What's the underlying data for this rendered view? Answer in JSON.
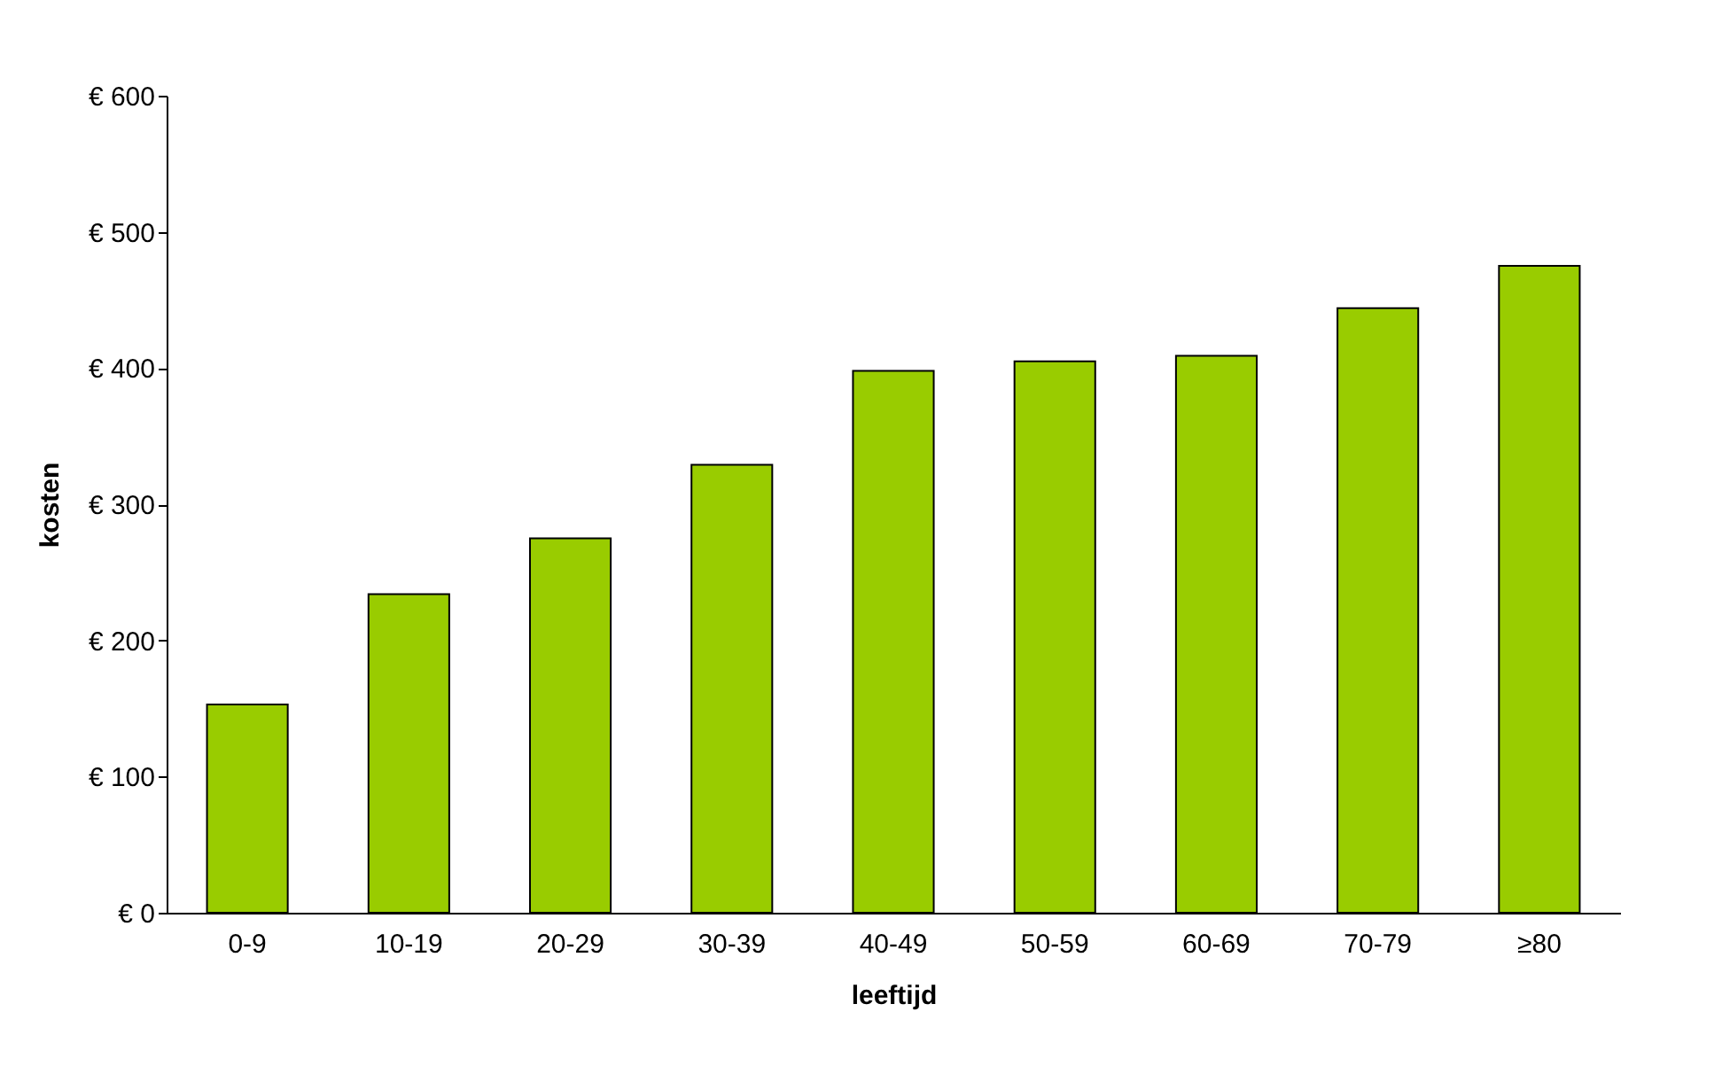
{
  "chart_data": {
    "type": "bar",
    "xlabel": "leeftijd",
    "ylabel": "kosten",
    "categories": [
      "0-9",
      "10-19",
      "20-29",
      "30-39",
      "40-49",
      "50-59",
      "60-69",
      "70-79",
      "≥80"
    ],
    "values": [
      153,
      234,
      275,
      329,
      398,
      405,
      409,
      444,
      475
    ],
    "color": "#99cc00",
    "ylim": [
      0,
      600
    ],
    "yticks": [
      {
        "value": 0,
        "label": "€ 0"
      },
      {
        "value": 100,
        "label": "€ 100"
      },
      {
        "value": 200,
        "label": "€ 200"
      },
      {
        "value": 300,
        "label": "€ 300"
      },
      {
        "value": 400,
        "label": "€ 400"
      },
      {
        "value": 500,
        "label": "€ 500"
      },
      {
        "value": 600,
        "label": "€ 600"
      }
    ],
    "grid": false
  }
}
